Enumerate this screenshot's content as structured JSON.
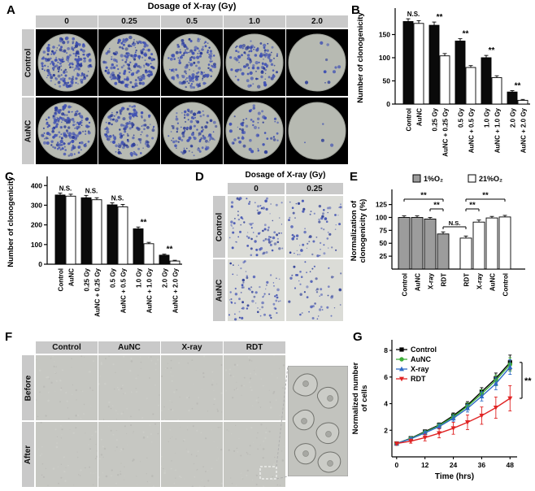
{
  "colors": {
    "header_bg": "#c9c9c9",
    "panelA_cell_bg": "#000000",
    "dish_bg": "#b7bab2",
    "colony": "#4152b3",
    "colony_dark": "#2c3c96",
    "d_cell_bg": "#dbdcd7",
    "f_cell_bg": "#c6c7c2",
    "bar_black": "#0a0a0a",
    "bar_white": "#ffffff",
    "bar_gray": "#9c9c9c",
    "series_control": "#000000",
    "series_aunc": "#3fae3a",
    "series_xray": "#2f6bc6",
    "series_rdt": "#e02424"
  },
  "panelA": {
    "label": "A",
    "title": "Dosage of X-ray (Gy)",
    "col_headers": [
      "0",
      "0.25",
      "0.5",
      "1.0",
      "2.0"
    ],
    "row_headers": [
      "Control",
      "AuNC"
    ],
    "colony_counts": [
      [
        210,
        185,
        160,
        120,
        10
      ],
      [
        190,
        150,
        120,
        60,
        4
      ]
    ]
  },
  "panelD": {
    "label": "D",
    "title": "Dosage of X-ray (Gy)",
    "col_headers": [
      "0",
      "0.25"
    ],
    "row_headers": [
      "Control",
      "AuNC"
    ],
    "colony_counts": [
      [
        95,
        75
      ],
      [
        80,
        55
      ]
    ]
  },
  "panelF": {
    "label": "F",
    "col_headers": [
      "Control",
      "AuNC",
      "X-ray",
      "RDT"
    ],
    "row_headers": [
      "Before",
      "After"
    ]
  },
  "chart_data": [
    {
      "id": "B",
      "panel_label": "B",
      "type": "bar",
      "ylabel": "Number of clonogenicity",
      "ylim": [
        0,
        200
      ],
      "yticks": [
        0,
        50,
        100,
        150
      ],
      "categories": [
        "Control",
        "AuNC",
        "0.25 Gy",
        "AuNC + 0.25 Gy",
        "0.5 Gy",
        "AuNC + 0.5 Gy",
        "1.0 Gy",
        "AuNC + 1.0 Gy",
        "2.0 Gy",
        "AuNC + 2.0 Gy"
      ],
      "values": [
        178,
        174,
        170,
        104,
        136,
        79,
        100,
        57,
        26,
        8
      ],
      "errors": [
        6,
        6,
        7,
        5,
        5,
        4,
        5,
        4,
        3,
        2
      ],
      "fills": [
        "black",
        "white",
        "black",
        "white",
        "black",
        "white",
        "black",
        "white",
        "black",
        "white"
      ],
      "annotations": [
        {
          "text": "N.S.",
          "between": [
            0,
            1
          ]
        },
        {
          "text": "**",
          "between": [
            2,
            3
          ]
        },
        {
          "text": "**",
          "between": [
            4,
            5
          ]
        },
        {
          "text": "**",
          "between": [
            6,
            7
          ]
        },
        {
          "text": "**",
          "between": [
            8,
            9
          ]
        }
      ]
    },
    {
      "id": "C",
      "panel_label": "C",
      "type": "bar",
      "ylabel": "Number of clonogenicity",
      "ylim": [
        0,
        430
      ],
      "yticks": [
        0,
        100,
        200,
        300,
        400
      ],
      "categories": [
        "Control",
        "AuNC",
        "0.25 Gy",
        "AuNC + 0.25 Gy",
        "0.5 Gy",
        "AuNC + 0.5 Gy",
        "1.0 Gy",
        "AuNC + 1.0 Gy",
        "2.0 Gy",
        "AuNC + 2.0 Gy"
      ],
      "values": [
        352,
        346,
        338,
        328,
        302,
        292,
        180,
        104,
        46,
        16
      ],
      "errors": [
        10,
        10,
        12,
        10,
        10,
        12,
        9,
        7,
        5,
        4
      ],
      "fills": [
        "black",
        "white",
        "black",
        "white",
        "black",
        "white",
        "black",
        "white",
        "black",
        "white"
      ],
      "annotations": [
        {
          "text": "N.S.",
          "between": [
            0,
            1
          ]
        },
        {
          "text": "N.S.",
          "between": [
            2,
            3
          ]
        },
        {
          "text": "N.S.",
          "between": [
            4,
            5
          ]
        },
        {
          "text": "**",
          "between": [
            6,
            7
          ]
        },
        {
          "text": "**",
          "between": [
            8,
            9
          ]
        }
      ]
    },
    {
      "id": "E",
      "panel_label": "E",
      "type": "bar",
      "ylabel": "Normalization of clonogenicity (%)",
      "ylabel_lines": [
        "Normalization of",
        "clonogenicity (%)"
      ],
      "ylim": [
        0,
        148
      ],
      "yticks": [
        25,
        50,
        75,
        100,
        125
      ],
      "legend": [
        {
          "label": "1%O₂",
          "fill": "gray"
        },
        {
          "label": "21%O₂",
          "fill": "white"
        }
      ],
      "categories": [
        "Control",
        "AuNC",
        "X-ray",
        "RDT",
        "RDT",
        "X-ray",
        "AuNC",
        "Control"
      ],
      "values": [
        100,
        100,
        97,
        68,
        60,
        91,
        99,
        101
      ],
      "errors": [
        3,
        3,
        3,
        4,
        4,
        4,
        3,
        3
      ],
      "fills": [
        "gray",
        "gray",
        "gray",
        "gray",
        "white",
        "white",
        "white",
        "white"
      ],
      "brackets": [
        {
          "text": "**",
          "from": 0,
          "to": 3,
          "level": 2
        },
        {
          "text": "**",
          "from": 2,
          "to": 3,
          "level": 1
        },
        {
          "text": "N.S.",
          "from": 3,
          "to": 4,
          "level": 0
        },
        {
          "text": "**",
          "from": 4,
          "to": 5,
          "level": 1
        },
        {
          "text": "**",
          "from": 4,
          "to": 7,
          "level": 2
        }
      ]
    },
    {
      "id": "G",
      "panel_label": "G",
      "type": "line",
      "xlabel": "Time (hrs)",
      "ylabel": "Normalized number of cells",
      "ylabel_lines": [
        "Normalized number",
        "of cells"
      ],
      "xlim": [
        -2,
        51
      ],
      "ylim": [
        0,
        8.8
      ],
      "xticks": [
        0,
        12,
        24,
        36,
        48
      ],
      "yticks": [
        2,
        4,
        6,
        8
      ],
      "x": [
        0,
        6,
        12,
        18,
        24,
        30,
        36,
        42,
        48
      ],
      "series": [
        {
          "name": "Control",
          "marker": "square",
          "color_key": "series_control",
          "values": [
            1.0,
            1.4,
            1.9,
            2.4,
            3.1,
            3.9,
            4.9,
            5.9,
            7.1
          ],
          "errors": [
            0.08,
            0.1,
            0.12,
            0.15,
            0.2,
            0.25,
            0.3,
            0.4,
            0.55
          ]
        },
        {
          "name": "AuNC",
          "marker": "circle",
          "color_key": "series_aunc",
          "values": [
            1.0,
            1.38,
            1.85,
            2.35,
            3.0,
            3.8,
            4.75,
            5.75,
            6.95
          ],
          "errors": [
            0.08,
            0.1,
            0.12,
            0.15,
            0.2,
            0.25,
            0.3,
            0.4,
            0.5
          ]
        },
        {
          "name": "X-ray",
          "marker": "triangle-up",
          "color_key": "series_xray",
          "values": [
            1.0,
            1.35,
            1.8,
            2.28,
            2.9,
            3.65,
            4.55,
            5.5,
            6.75
          ],
          "errors": [
            0.08,
            0.1,
            0.14,
            0.18,
            0.22,
            0.28,
            0.35,
            0.45,
            0.55
          ]
        },
        {
          "name": "RDT",
          "marker": "triangle-down",
          "color_key": "series_rdt",
          "values": [
            1.0,
            1.18,
            1.45,
            1.78,
            2.15,
            2.6,
            3.1,
            3.7,
            4.4
          ],
          "errors": [
            0.08,
            0.15,
            0.25,
            0.35,
            0.45,
            0.55,
            0.65,
            0.8,
            0.95
          ]
        }
      ],
      "significance": "**"
    }
  ]
}
